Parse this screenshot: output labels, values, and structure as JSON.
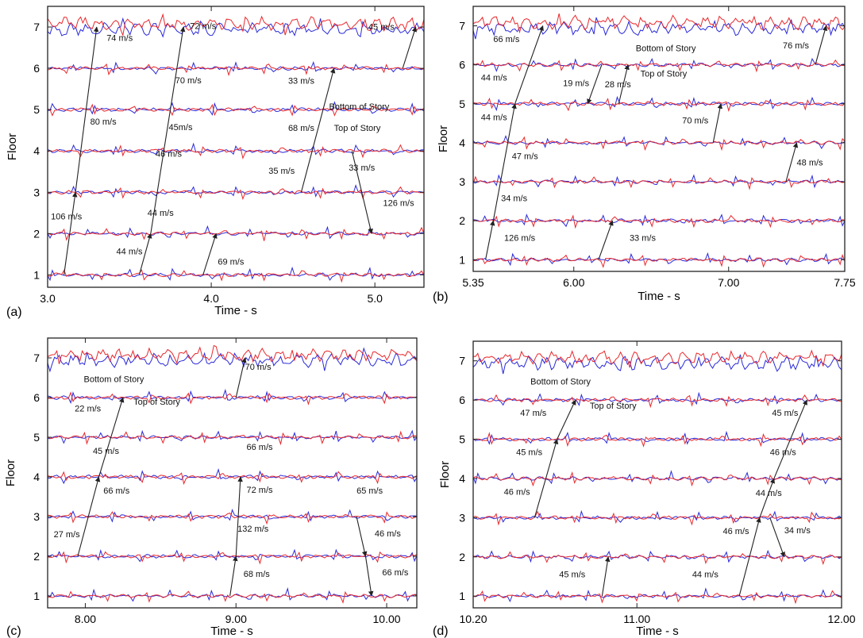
{
  "colors": {
    "bottom_trace": "#e8282c",
    "top_trace": "#2a2ad8",
    "arrow": "#222222",
    "frame": "#222222"
  },
  "chart_data": [
    {
      "type": "line",
      "panel_label": "(a)",
      "xlabel": "Time - s",
      "ylabel": "Floor",
      "xlim": [
        3.0,
        5.3
      ],
      "ylim": [
        0.7,
        7.5
      ],
      "xticks": [
        {
          "v": 3.0,
          "label": "3.0"
        },
        {
          "v": 4.0,
          "label": "4.0"
        },
        {
          "v": 5.0,
          "label": "5.0"
        }
      ],
      "yticks": [
        1,
        2,
        3,
        4,
        5,
        6,
        7
      ],
      "series": [],
      "arrows": [
        {
          "x": [
            3.1,
            3.17
          ],
          "y": [
            1,
            3
          ]
        },
        {
          "x": [
            3.17,
            3.3
          ],
          "y": [
            3,
            7
          ]
        },
        {
          "x": [
            3.56,
            3.63
          ],
          "y": [
            1,
            2
          ]
        },
        {
          "x": [
            3.63,
            3.83
          ],
          "y": [
            2,
            7
          ]
        },
        {
          "x": [
            3.95,
            4.03
          ],
          "y": [
            1,
            2
          ]
        },
        {
          "x": [
            4.55,
            4.75
          ],
          "y": [
            3,
            6
          ]
        },
        {
          "x": [
            4.86,
            4.98
          ],
          "y": [
            4,
            2
          ]
        },
        {
          "x": [
            5.17,
            5.25
          ],
          "y": [
            6,
            7
          ]
        }
      ],
      "annotations": [
        {
          "text": "74 m/s",
          "x": 3.36,
          "y": 6.66
        },
        {
          "text": "80 m/s",
          "x": 3.26,
          "y": 4.64
        },
        {
          "text": "106 m/s",
          "x": 3.02,
          "y": 2.34
        },
        {
          "text": "72 m/s",
          "x": 3.87,
          "y": 6.95
        },
        {
          "text": "70 m/s",
          "x": 3.78,
          "y": 5.64
        },
        {
          "text": "45m/s",
          "x": 3.74,
          "y": 4.5
        },
        {
          "text": "46 m/s",
          "x": 3.66,
          "y": 3.86
        },
        {
          "text": "44 m/s",
          "x": 3.61,
          "y": 2.43
        },
        {
          "text": "44 m/s",
          "x": 3.42,
          "y": 1.5
        },
        {
          "text": "69 m/s",
          "x": 4.04,
          "y": 1.25
        },
        {
          "text": "33 m/s",
          "x": 4.47,
          "y": 5.63
        },
        {
          "text": "68 m/s",
          "x": 4.47,
          "y": 4.48
        },
        {
          "text": "35 m/s",
          "x": 4.35,
          "y": 3.45
        },
        {
          "text": "33 m/s",
          "x": 4.84,
          "y": 3.52
        },
        {
          "text": "126 m/s",
          "x": 5.05,
          "y": 2.67
        },
        {
          "text": "45 m/s",
          "x": 4.96,
          "y": 6.93
        },
        {
          "text": "Bottom of Story",
          "x": 4.72,
          "y": 5.0
        },
        {
          "text": "Top of Story",
          "x": 4.75,
          "y": 4.48
        }
      ]
    },
    {
      "type": "line",
      "panel_label": "(b)",
      "xlabel": "Time - s",
      "ylabel": "Floor",
      "xlim": [
        5.35,
        7.75
      ],
      "ylim": [
        0.7,
        7.5
      ],
      "xticks": [
        {
          "v": 5.35,
          "label": "5.35"
        },
        {
          "v": 6.0,
          "label": "6.00"
        },
        {
          "v": 7.0,
          "label": "7.00"
        },
        {
          "v": 7.75,
          "label": "7.75"
        }
      ],
      "yticks": [
        1,
        2,
        3,
        4,
        5,
        6,
        7
      ],
      "series": [],
      "arrows": [
        {
          "x": [
            5.43,
            5.48
          ],
          "y": [
            1,
            2
          ]
        },
        {
          "x": [
            5.48,
            5.62
          ],
          "y": [
            2,
            5
          ]
        },
        {
          "x": [
            5.62,
            5.8
          ],
          "y": [
            5,
            7
          ]
        },
        {
          "x": [
            6.16,
            6.25
          ],
          "y": [
            1,
            2
          ]
        },
        {
          "x": [
            6.18,
            6.09
          ],
          "y": [
            6,
            5
          ]
        },
        {
          "x": [
            6.29,
            6.35
          ],
          "y": [
            5,
            6
          ]
        },
        {
          "x": [
            6.9,
            6.95
          ],
          "y": [
            4,
            5
          ]
        },
        {
          "x": [
            7.37,
            7.44
          ],
          "y": [
            3,
            4
          ]
        },
        {
          "x": [
            7.56,
            7.63
          ],
          "y": [
            6,
            7
          ]
        }
      ],
      "annotations": [
        {
          "text": "66 m/s",
          "x": 5.48,
          "y": 6.58
        },
        {
          "text": "44 m/s",
          "x": 5.4,
          "y": 5.6
        },
        {
          "text": "19 m/s",
          "x": 5.93,
          "y": 5.45
        },
        {
          "text": "28 m/s",
          "x": 6.2,
          "y": 5.42
        },
        {
          "text": "44 m/s",
          "x": 5.4,
          "y": 4.58
        },
        {
          "text": "70 m/s",
          "x": 6.7,
          "y": 4.5
        },
        {
          "text": "47 m/s",
          "x": 5.6,
          "y": 3.58
        },
        {
          "text": "48 m/s",
          "x": 7.44,
          "y": 3.42
        },
        {
          "text": "34 m/s",
          "x": 5.53,
          "y": 2.5
        },
        {
          "text": "126 m/s",
          "x": 5.55,
          "y": 1.48
        },
        {
          "text": "33 m/s",
          "x": 6.36,
          "y": 1.48
        },
        {
          "text": "76 m/s",
          "x": 7.35,
          "y": 6.42
        },
        {
          "text": "Bottom of Story",
          "x": 6.4,
          "y": 6.35
        },
        {
          "text": "Top of Story",
          "x": 6.43,
          "y": 5.7
        }
      ]
    },
    {
      "type": "line",
      "panel_label": "(c)",
      "xlabel": "Time - s",
      "ylabel": "Floor",
      "xlim": [
        7.75,
        10.2
      ],
      "ylim": [
        0.7,
        7.5
      ],
      "xticks": [
        {
          "v": 8.0,
          "label": "8.00"
        },
        {
          "v": 9.0,
          "label": "9.00"
        },
        {
          "v": 10.0,
          "label": "10.00"
        }
      ],
      "yticks": [
        1,
        2,
        3,
        4,
        5,
        6,
        7
      ],
      "series": [],
      "arrows": [
        {
          "x": [
            7.95,
            8.09
          ],
          "y": [
            2,
            4
          ]
        },
        {
          "x": [
            8.09,
            8.25
          ],
          "y": [
            4,
            6
          ]
        },
        {
          "x": [
            8.96,
            9.0
          ],
          "y": [
            1,
            2
          ]
        },
        {
          "x": [
            9.0,
            9.03
          ],
          "y": [
            2,
            4
          ]
        },
        {
          "x": [
            9.0,
            9.06
          ],
          "y": [
            6,
            7
          ]
        },
        {
          "x": [
            9.8,
            9.86
          ],
          "y": [
            3,
            2
          ]
        },
        {
          "x": [
            9.86,
            9.9
          ],
          "y": [
            2,
            1
          ]
        }
      ],
      "annotations": [
        {
          "text": "Bottom of Story",
          "x": 7.99,
          "y": 6.39
        },
        {
          "text": "Top of Story",
          "x": 8.32,
          "y": 5.82
        },
        {
          "text": "22 m/s",
          "x": 7.93,
          "y": 5.65
        },
        {
          "text": "45 m/s",
          "x": 8.05,
          "y": 4.58
        },
        {
          "text": "66 m/s",
          "x": 8.12,
          "y": 3.58
        },
        {
          "text": "27 m/s",
          "x": 7.79,
          "y": 2.48
        },
        {
          "text": "70 m/s",
          "x": 9.06,
          "y": 6.7
        },
        {
          "text": "66 m/s",
          "x": 9.07,
          "y": 4.68
        },
        {
          "text": "72 m/s",
          "x": 9.07,
          "y": 3.6
        },
        {
          "text": "132 m/s",
          "x": 9.01,
          "y": 2.62
        },
        {
          "text": "68 m/s",
          "x": 9.05,
          "y": 1.48
        },
        {
          "text": "65 m/s",
          "x": 9.8,
          "y": 3.58
        },
        {
          "text": "46 m/s",
          "x": 9.92,
          "y": 2.5
        },
        {
          "text": "66 m/s",
          "x": 9.97,
          "y": 1.52
        }
      ]
    },
    {
      "type": "line",
      "panel_label": "(d)",
      "xlabel": "Time - s",
      "ylabel": "Floor",
      "xlim": [
        10.2,
        12.0
      ],
      "ylim": [
        0.7,
        7.5
      ],
      "xticks": [
        {
          "v": 10.2,
          "label": "10.20"
        },
        {
          "v": 11.0,
          "label": "11.00"
        },
        {
          "v": 12.0,
          "label": "12.00"
        }
      ],
      "yticks": [
        1,
        2,
        3,
        4,
        5,
        6,
        7
      ],
      "series": [],
      "arrows": [
        {
          "x": [
            10.5,
            10.61
          ],
          "y": [
            3,
            5
          ]
        },
        {
          "x": [
            10.61,
            10.7
          ],
          "y": [
            5,
            6
          ]
        },
        {
          "x": [
            10.83,
            10.86
          ],
          "y": [
            1,
            2
          ]
        },
        {
          "x": [
            11.5,
            11.6
          ],
          "y": [
            1,
            3
          ]
        },
        {
          "x": [
            11.6,
            11.67
          ],
          "y": [
            3,
            4
          ]
        },
        {
          "x": [
            11.67,
            11.83
          ],
          "y": [
            4,
            6
          ]
        },
        {
          "x": [
            11.65,
            11.72
          ],
          "y": [
            3,
            2
          ]
        }
      ],
      "annotations": [
        {
          "text": "Bottom of Story",
          "x": 10.48,
          "y": 6.4
        },
        {
          "text": "Top of Story",
          "x": 10.77,
          "y": 5.78
        },
        {
          "text": "47 m/s",
          "x": 10.43,
          "y": 5.6
        },
        {
          "text": "45 m/s",
          "x": 10.41,
          "y": 4.6
        },
        {
          "text": "46 m/s",
          "x": 10.35,
          "y": 3.58
        },
        {
          "text": "45 m/s",
          "x": 10.62,
          "y": 1.48
        },
        {
          "text": "45 m/s",
          "x": 11.66,
          "y": 5.6
        },
        {
          "text": "46 m/s",
          "x": 11.65,
          "y": 4.6
        },
        {
          "text": "44 m/s",
          "x": 11.58,
          "y": 3.55
        },
        {
          "text": "46 m/s",
          "x": 11.42,
          "y": 2.58
        },
        {
          "text": "34 m/s",
          "x": 11.72,
          "y": 2.6
        },
        {
          "text": "44 m/s",
          "x": 11.27,
          "y": 1.48
        }
      ]
    }
  ]
}
